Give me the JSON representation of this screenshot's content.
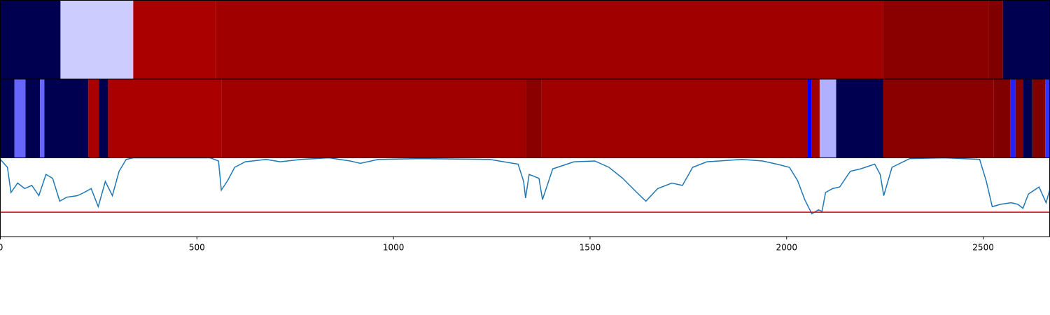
{
  "chart_data": [
    {
      "type": "segments",
      "xlim": [
        0,
        2669
      ],
      "segments": [
        {
          "start": 0,
          "end": 153,
          "color": "#000050"
        },
        {
          "start": 153,
          "end": 338,
          "color": "#ccccff"
        },
        {
          "start": 338,
          "end": 548,
          "color": "#aa0000"
        },
        {
          "start": 548,
          "end": 2246,
          "color": "#a00000"
        },
        {
          "start": 2246,
          "end": 2514,
          "color": "#8a0000"
        },
        {
          "start": 2514,
          "end": 2550,
          "color": "#800000"
        },
        {
          "start": 2550,
          "end": 2669,
          "color": "#000050"
        }
      ]
    },
    {
      "type": "segments",
      "xlim": [
        0,
        2669
      ],
      "segments": [
        {
          "start": 0,
          "end": 36,
          "color": "#000050"
        },
        {
          "start": 36,
          "end": 64,
          "color": "#6666ff"
        },
        {
          "start": 64,
          "end": 101,
          "color": "#000050"
        },
        {
          "start": 101,
          "end": 112,
          "color": "#6666ff"
        },
        {
          "start": 112,
          "end": 224,
          "color": "#000050"
        },
        {
          "start": 224,
          "end": 251,
          "color": "#aa0000"
        },
        {
          "start": 251,
          "end": 274,
          "color": "#000050"
        },
        {
          "start": 274,
          "end": 562,
          "color": "#aa0000"
        },
        {
          "start": 562,
          "end": 1338,
          "color": "#a00000"
        },
        {
          "start": 1338,
          "end": 1377,
          "color": "#8a0000"
        },
        {
          "start": 1377,
          "end": 2053,
          "color": "#a00000"
        },
        {
          "start": 2053,
          "end": 2064,
          "color": "#0000ff"
        },
        {
          "start": 2064,
          "end": 2084,
          "color": "#a00000"
        },
        {
          "start": 2084,
          "end": 2126,
          "color": "#b0b0ff"
        },
        {
          "start": 2126,
          "end": 2246,
          "color": "#000050"
        },
        {
          "start": 2246,
          "end": 2527,
          "color": "#8a0000"
        },
        {
          "start": 2527,
          "end": 2569,
          "color": "#800000"
        },
        {
          "start": 2569,
          "end": 2582,
          "color": "#2222ff"
        },
        {
          "start": 2582,
          "end": 2601,
          "color": "#800000"
        },
        {
          "start": 2601,
          "end": 2625,
          "color": "#000050"
        },
        {
          "start": 2625,
          "end": 2658,
          "color": "#800000"
        },
        {
          "start": 2658,
          "end": 2669,
          "color": "#3333ff"
        }
      ]
    },
    {
      "type": "line",
      "xlim": [
        0,
        2669
      ],
      "ylim": [
        0,
        1
      ],
      "xticks": [
        0,
        500,
        1000,
        1500,
        2000,
        2500
      ],
      "x": [
        0,
        18,
        27,
        44,
        62,
        80,
        98,
        116,
        133,
        151,
        169,
        196,
        213,
        231,
        249,
        267,
        285,
        302,
        320,
        338,
        445,
        534,
        555,
        562,
        578,
        596,
        623,
        676,
        712,
        765,
        836,
        890,
        916,
        961,
        1067,
        1245,
        1317,
        1331,
        1336,
        1345,
        1370,
        1379,
        1405,
        1459,
        1512,
        1548,
        1583,
        1619,
        1642,
        1672,
        1708,
        1735,
        1761,
        1797,
        1886,
        1939,
        1975,
        2007,
        2028,
        2046,
        2064,
        2081,
        2090,
        2099,
        2117,
        2135,
        2162,
        2188,
        2224,
        2238,
        2247,
        2268,
        2313,
        2402,
        2491,
        2508,
        2523,
        2544,
        2571,
        2588,
        2601,
        2615,
        2642,
        2660,
        2669
      ],
      "series": [
        {
          "color": "#1f77b4",
          "values": [
            0.98,
            0.88,
            0.56,
            0.68,
            0.61,
            0.65,
            0.52,
            0.79,
            0.74,
            0.45,
            0.5,
            0.52,
            0.56,
            0.61,
            0.38,
            0.7,
            0.52,
            0.83,
            0.98,
            1,
            1,
            1,
            0.96,
            0.59,
            0.71,
            0.88,
            0.95,
            0.98,
            0.95,
            0.98,
            1,
            0.96,
            0.93,
            0.98,
            0.99,
            0.98,
            0.92,
            0.7,
            0.49,
            0.79,
            0.74,
            0.47,
            0.86,
            0.95,
            0.96,
            0.88,
            0.74,
            0.56,
            0.45,
            0.61,
            0.68,
            0.65,
            0.88,
            0.95,
            0.98,
            0.96,
            0.92,
            0.88,
            0.71,
            0.47,
            0.29,
            0.34,
            0.32,
            0.56,
            0.61,
            0.63,
            0.83,
            0.86,
            0.92,
            0.79,
            0.52,
            0.88,
            0.99,
            1,
            0.98,
            0.7,
            0.38,
            0.41,
            0.43,
            0.41,
            0.36,
            0.54,
            0.63,
            0.43,
            0.59
          ]
        }
      ],
      "hline": {
        "value": 0.31,
        "color": "#dd0000"
      }
    }
  ]
}
